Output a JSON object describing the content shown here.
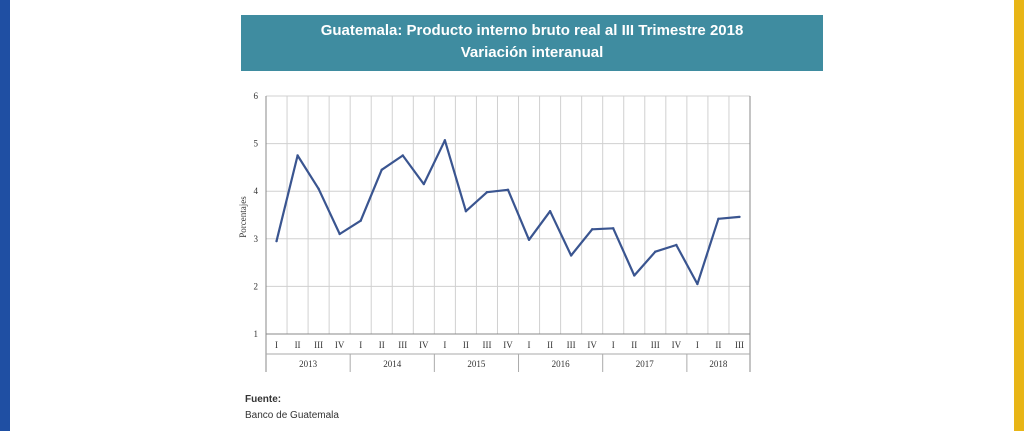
{
  "colors": {
    "left_stripe": "#1f4fa3",
    "right_stripe": "#e8b516",
    "header_bg": "#3f8ca0",
    "line": "#3a5590",
    "grid": "#d0d0d0"
  },
  "header": {
    "title_line1": "Guatemala: Producto interno bruto real al III Trimestre 2018",
    "title_line2": "Variación interanual"
  },
  "source": {
    "label": "Fuente:",
    "text": "Banco de Guatemala"
  },
  "chart_data": {
    "type": "line",
    "title": "Guatemala: Producto interno bruto real al III Trimestre 2018",
    "subtitle": "Variación interanual",
    "xlabel": "",
    "ylabel": "Porcentajes",
    "ylim": [
      1,
      6
    ],
    "yticks": [
      "1",
      "2",
      "3",
      "4",
      "5",
      "6"
    ],
    "grid": true,
    "years": [
      {
        "label": "2013",
        "quarters": 4
      },
      {
        "label": "2014",
        "quarters": 4
      },
      {
        "label": "2015",
        "quarters": 4
      },
      {
        "label": "2016",
        "quarters": 4
      },
      {
        "label": "2017",
        "quarters": 4
      },
      {
        "label": "2018",
        "quarters": 3
      }
    ],
    "categories": [
      "I",
      "II",
      "III",
      "IV",
      "I",
      "II",
      "III",
      "IV",
      "I",
      "II",
      "III",
      "IV",
      "I",
      "II",
      "III",
      "IV",
      "I",
      "II",
      "III",
      "IV",
      "I",
      "II",
      "III"
    ],
    "values": [
      2.95,
      4.75,
      4.05,
      3.1,
      3.38,
      4.45,
      4.75,
      4.15,
      5.07,
      3.58,
      3.98,
      4.03,
      2.98,
      3.58,
      2.65,
      3.2,
      3.22,
      2.23,
      2.73,
      2.87,
      2.05,
      3.42,
      3.46
    ]
  }
}
